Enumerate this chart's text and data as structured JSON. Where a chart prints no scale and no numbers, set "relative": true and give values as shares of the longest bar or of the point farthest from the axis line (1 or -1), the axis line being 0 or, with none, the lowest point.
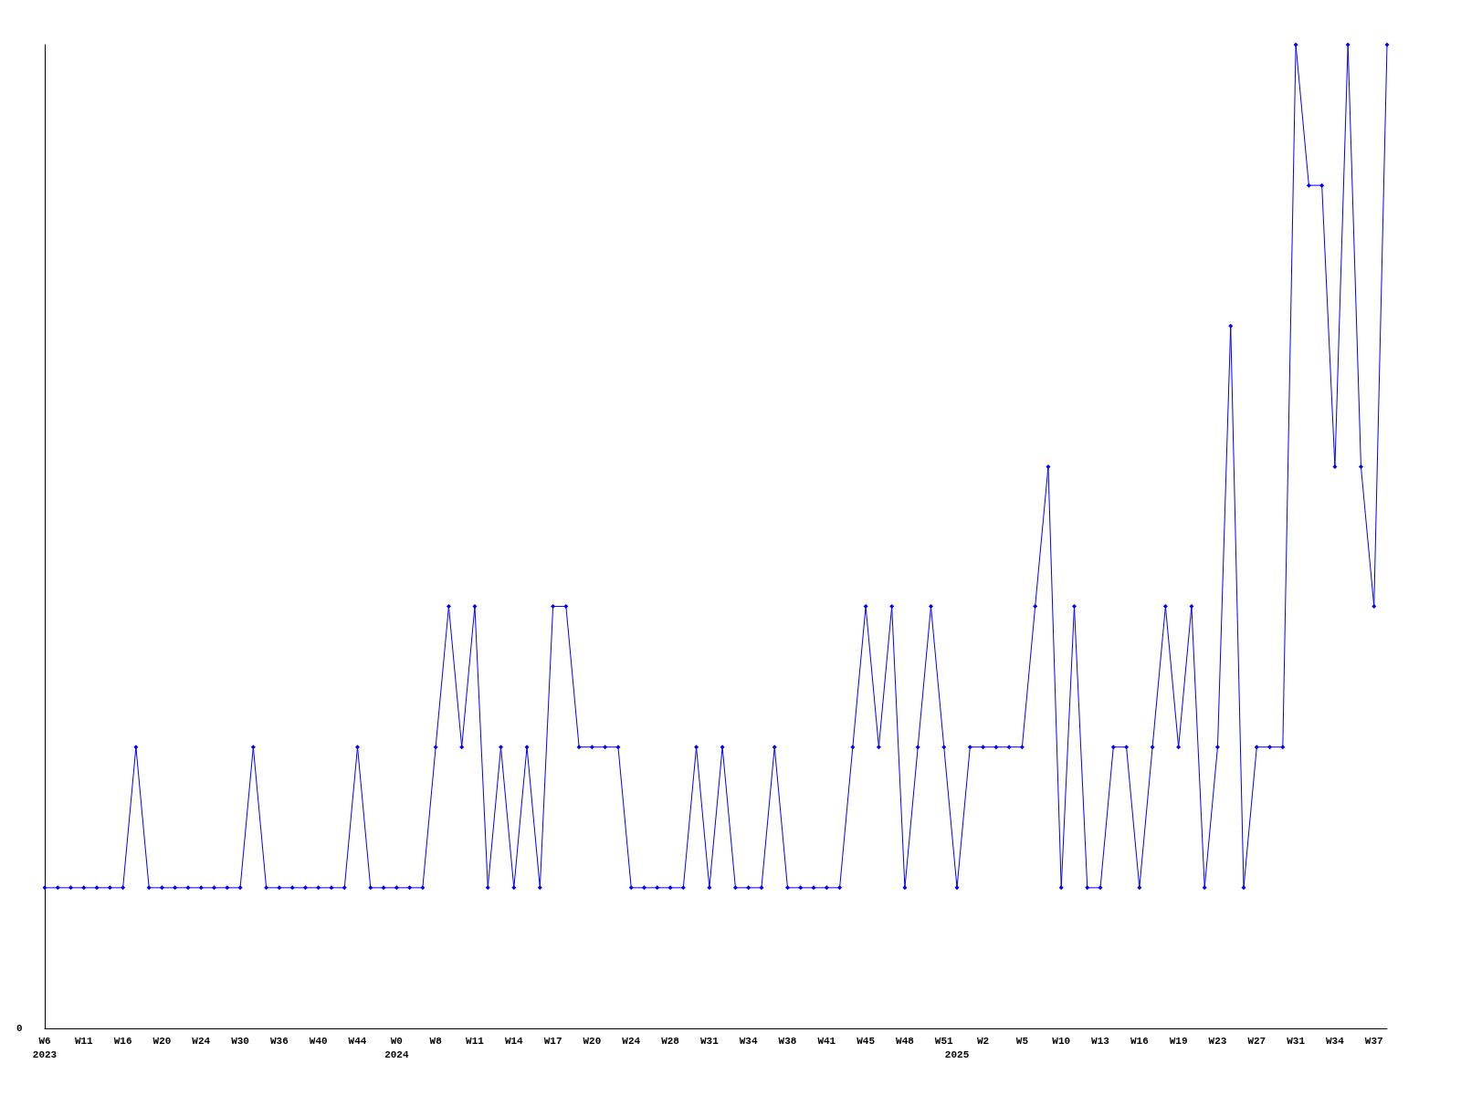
{
  "chart_data": {
    "type": "line",
    "relative": true,
    "marker": "diamond",
    "line_style": "solid",
    "annotations": [
      "0"
    ],
    "categories": [
      "W6\n2023",
      null,
      null,
      "W11",
      null,
      null,
      "W16",
      null,
      null,
      "W20",
      null,
      null,
      "W24",
      null,
      null,
      "W30",
      null,
      null,
      "W36",
      null,
      null,
      "W40",
      null,
      null,
      "W44",
      null,
      null,
      "W0\n2024",
      null,
      null,
      "W8",
      null,
      null,
      "W11",
      null,
      null,
      "W14",
      null,
      null,
      "W17",
      null,
      null,
      "W20",
      null,
      null,
      "W24",
      null,
      null,
      "W28",
      null,
      null,
      "W31",
      null,
      null,
      "W34",
      null,
      null,
      "W38",
      null,
      null,
      "W41",
      null,
      null,
      "W45",
      null,
      null,
      "W48",
      null,
      null,
      "W51",
      "\n2025",
      null,
      "W2",
      null,
      null,
      "W5",
      null,
      null,
      "W10",
      null,
      null,
      "W13",
      null,
      null,
      "W16",
      null,
      null,
      "W19",
      null,
      null,
      "W23",
      null,
      null,
      "W27",
      null,
      null,
      "W31",
      null,
      null,
      "W34",
      null,
      null,
      "W37",
      null
    ],
    "series": [
      {
        "color": "#0000ff",
        "values": [
          0.143,
          0.143,
          0.143,
          0.143,
          0.143,
          0.143,
          0.143,
          0.286,
          0.143,
          0.143,
          0.143,
          0.143,
          0.143,
          0.143,
          0.143,
          0.143,
          0.286,
          0.143,
          0.143,
          0.143,
          0.143,
          0.143,
          0.143,
          0.143,
          0.286,
          0.143,
          0.143,
          0.143,
          0.143,
          0.143,
          0.286,
          0.429,
          0.286,
          0.429,
          0.143,
          0.286,
          0.143,
          0.286,
          0.143,
          0.429,
          0.429,
          0.286,
          0.286,
          0.286,
          0.286,
          0.143,
          0.143,
          0.143,
          0.143,
          0.143,
          0.286,
          0.143,
          0.286,
          0.143,
          0.143,
          0.143,
          0.286,
          0.143,
          0.143,
          0.143,
          0.143,
          0.143,
          0.286,
          0.429,
          0.286,
          0.429,
          0.143,
          0.286,
          0.429,
          0.286,
          0.143,
          0.286,
          0.286,
          0.286,
          0.286,
          0.286,
          0.429,
          0.571,
          0.143,
          0.429,
          0.143,
          0.143,
          0.286,
          0.286,
          0.143,
          0.286,
          0.429,
          0.286,
          0.429,
          0.143,
          0.286,
          0.714,
          0.143,
          0.286,
          0.286,
          0.286,
          1,
          0.857,
          0.857,
          0.571,
          1,
          0.571,
          0.429,
          1
        ]
      }
    ]
  }
}
